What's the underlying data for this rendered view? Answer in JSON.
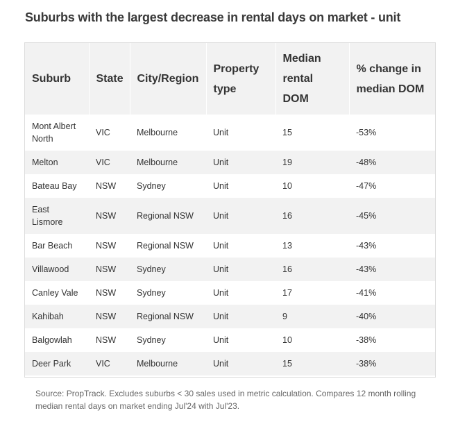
{
  "title": "Suburbs with the largest decrease in rental days on market - unit",
  "table": {
    "headers": [
      "Suburb",
      "State",
      "City/Region",
      "Property type",
      "Median rental DOM",
      "% change in median DOM"
    ],
    "rows": [
      [
        "Mont Albert North",
        "VIC",
        "Melbourne",
        "Unit",
        "15",
        "-53%"
      ],
      [
        "Melton",
        "VIC",
        "Melbourne",
        "Unit",
        "19",
        "-48%"
      ],
      [
        "Bateau Bay",
        "NSW",
        "Sydney",
        "Unit",
        "10",
        "-47%"
      ],
      [
        "East Lismore",
        "NSW",
        "Regional NSW",
        "Unit",
        "16",
        "-45%"
      ],
      [
        "Bar Beach",
        "NSW",
        "Regional NSW",
        "Unit",
        "13",
        "-43%"
      ],
      [
        "Villawood",
        "NSW",
        "Sydney",
        "Unit",
        "16",
        "-43%"
      ],
      [
        "Canley Vale",
        "NSW",
        "Sydney",
        "Unit",
        "17",
        "-41%"
      ],
      [
        "Kahibah",
        "NSW",
        "Regional NSW",
        "Unit",
        "9",
        "-40%"
      ],
      [
        "Balgowlah",
        "NSW",
        "Sydney",
        "Unit",
        "10",
        "-38%"
      ],
      [
        "Deer Park",
        "VIC",
        "Melbourne",
        "Unit",
        "15",
        "-38%"
      ]
    ]
  },
  "source": "Source: PropTrack. Excludes suburbs < 30 sales used in metric calculation. Compares 12 month rolling median rental days on market ending Jul'24 with Jul'23."
}
